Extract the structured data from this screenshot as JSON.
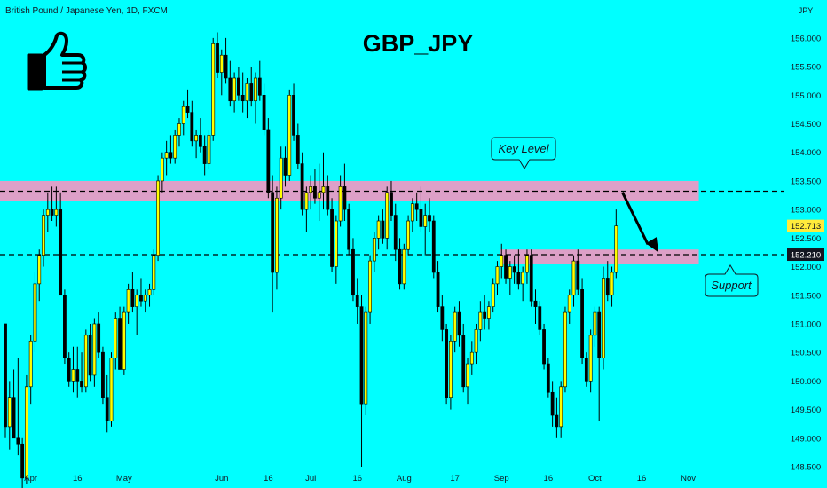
{
  "header": {
    "symbol_label": "British Pound / Japanese Yen, 1D, FXCM",
    "title": "GBP_JPY",
    "currency": "JPY"
  },
  "colors": {
    "background": "#00ffff",
    "bull": "#ffff00",
    "bear": "#000000",
    "zone": "#dda0c8",
    "price_badge": "#ffeb3b",
    "dark_badge": "#131722"
  },
  "icons": {
    "thumbs": "thumbs-up-icon"
  },
  "annotations": {
    "key_level": "Key Level",
    "support": "Support"
  },
  "price_tags": {
    "current": "152.713",
    "support": "152.210"
  },
  "chart_data": {
    "type": "candlestick",
    "ylim": [
      148.5,
      156.2
    ],
    "y_ticks": [
      "156.000",
      "155.500",
      "155.000",
      "154.500",
      "154.000",
      "153.500",
      "153.000",
      "152.500",
      "152.000",
      "151.500",
      "151.000",
      "150.500",
      "150.000",
      "149.500",
      "149.000",
      "148.500"
    ],
    "x_ticks": [
      {
        "label": "Apr",
        "i": 6
      },
      {
        "label": "16",
        "i": 17
      },
      {
        "label": "May",
        "i": 28
      },
      {
        "label": "Jun",
        "i": 51
      },
      {
        "label": "16",
        "i": 62
      },
      {
        "label": "Jul",
        "i": 72
      },
      {
        "label": "16",
        "i": 83
      },
      {
        "label": "Aug",
        "i": 94
      },
      {
        "label": "17",
        "i": 106
      },
      {
        "label": "Sep",
        "i": 117
      },
      {
        "label": "16",
        "i": 128
      },
      {
        "label": "Oct",
        "i": 139
      },
      {
        "label": "16",
        "i": 150
      },
      {
        "label": "Nov",
        "i": 161
      }
    ],
    "zones": [
      {
        "name": "key-level",
        "from": 153.15,
        "to": 153.5,
        "x_from": 0,
        "x_to": 163.5
      },
      {
        "name": "support",
        "from": 152.05,
        "to": 152.3,
        "x_from": 118,
        "x_to": 163.5
      }
    ],
    "dashed_levels": [
      153.32,
      152.21
    ],
    "arrow": {
      "from": {
        "i": 145.5,
        "y": 153.3
      },
      "to": {
        "i": 154,
        "y": 152.25
      }
    },
    "ohlc": [
      [
        151.0,
        151.0,
        149.0,
        149.2
      ],
      [
        149.2,
        150.0,
        148.8,
        149.7
      ],
      [
        149.7,
        150.2,
        149.0,
        149.0
      ],
      [
        149.0,
        150.4,
        148.7,
        148.9
      ],
      [
        148.9,
        149.0,
        148.0,
        148.3
      ],
      [
        148.3,
        150.1,
        148.2,
        149.9
      ],
      [
        149.9,
        150.8,
        149.6,
        150.7
      ],
      [
        150.7,
        151.9,
        150.5,
        151.7
      ],
      [
        151.7,
        152.3,
        151.4,
        152.2
      ],
      [
        152.2,
        153.0,
        152.0,
        152.9
      ],
      [
        152.9,
        153.3,
        152.6,
        153.0
      ],
      [
        153.0,
        153.4,
        152.8,
        152.9
      ],
      [
        152.9,
        153.4,
        152.7,
        153.0
      ],
      [
        153.0,
        153.3,
        151.5,
        151.5
      ],
      [
        151.5,
        151.6,
        150.3,
        150.4
      ],
      [
        150.4,
        150.5,
        149.9,
        150.0
      ],
      [
        150.0,
        150.6,
        149.8,
        150.2
      ],
      [
        150.2,
        150.6,
        149.7,
        150.0
      ],
      [
        150.0,
        150.5,
        149.8,
        149.9
      ],
      [
        149.9,
        150.9,
        149.8,
        150.8
      ],
      [
        150.8,
        151.0,
        150.0,
        150.1
      ],
      [
        150.1,
        151.1,
        149.9,
        151.0
      ],
      [
        151.0,
        151.2,
        150.4,
        150.5
      ],
      [
        150.5,
        150.6,
        149.6,
        149.7
      ],
      [
        149.7,
        150.1,
        149.1,
        149.3
      ],
      [
        149.3,
        150.5,
        149.2,
        150.4
      ],
      [
        150.4,
        151.2,
        150.2,
        151.1
      ],
      [
        151.1,
        151.3,
        150.2,
        150.2
      ],
      [
        150.2,
        151.3,
        150.1,
        151.2
      ],
      [
        151.2,
        151.7,
        151.0,
        151.6
      ],
      [
        151.6,
        151.9,
        151.2,
        151.3
      ],
      [
        151.3,
        151.6,
        150.8,
        151.5
      ],
      [
        151.5,
        151.8,
        151.3,
        151.4
      ],
      [
        151.4,
        151.6,
        151.2,
        151.5
      ],
      [
        151.5,
        151.7,
        151.3,
        151.6
      ],
      [
        151.6,
        152.3,
        151.5,
        152.2
      ],
      [
        152.2,
        153.6,
        152.1,
        153.5
      ],
      [
        153.5,
        154.0,
        153.3,
        153.9
      ],
      [
        153.9,
        154.2,
        153.6,
        154.0
      ],
      [
        154.0,
        154.3,
        153.8,
        153.9
      ],
      [
        153.9,
        154.4,
        153.8,
        154.3
      ],
      [
        154.3,
        154.6,
        154.1,
        154.5
      ],
      [
        154.5,
        154.9,
        154.3,
        154.8
      ],
      [
        154.8,
        155.1,
        154.6,
        154.7
      ],
      [
        154.7,
        154.9,
        154.1,
        154.2
      ],
      [
        154.2,
        154.4,
        153.9,
        154.3
      ],
      [
        154.3,
        154.6,
        154.0,
        154.1
      ],
      [
        154.1,
        154.3,
        153.6,
        153.8
      ],
      [
        153.8,
        154.4,
        153.7,
        154.3
      ],
      [
        154.3,
        156.0,
        154.2,
        155.9
      ],
      [
        155.9,
        156.1,
        155.3,
        155.4
      ],
      [
        155.4,
        155.8,
        155.0,
        155.7
      ],
      [
        155.7,
        156.0,
        155.2,
        155.3
      ],
      [
        155.3,
        155.6,
        154.8,
        154.9
      ],
      [
        154.9,
        155.4,
        154.7,
        155.3
      ],
      [
        155.3,
        155.5,
        154.9,
        155.0
      ],
      [
        155.0,
        155.4,
        154.7,
        154.9
      ],
      [
        154.9,
        155.3,
        154.6,
        155.2
      ],
      [
        155.2,
        155.5,
        154.8,
        154.9
      ],
      [
        154.9,
        155.4,
        154.5,
        155.3
      ],
      [
        155.3,
        155.6,
        154.9,
        155.0
      ],
      [
        155.0,
        155.2,
        154.3,
        154.4
      ],
      [
        154.4,
        154.6,
        153.2,
        153.3
      ],
      [
        153.3,
        153.6,
        151.2,
        151.9
      ],
      [
        151.9,
        153.4,
        151.6,
        153.2
      ],
      [
        153.2,
        154.1,
        153.0,
        153.9
      ],
      [
        153.9,
        154.1,
        153.4,
        153.6
      ],
      [
        153.6,
        155.1,
        153.5,
        155.0
      ],
      [
        155.0,
        155.2,
        154.2,
        154.3
      ],
      [
        154.3,
        154.5,
        153.7,
        153.8
      ],
      [
        153.8,
        154.0,
        152.9,
        153.0
      ],
      [
        153.0,
        153.4,
        152.6,
        153.3
      ],
      [
        153.3,
        153.6,
        153.0,
        153.4
      ],
      [
        153.4,
        153.7,
        153.1,
        153.2
      ],
      [
        153.2,
        153.8,
        152.8,
        153.3
      ],
      [
        153.3,
        154.0,
        153.0,
        153.4
      ],
      [
        153.4,
        153.6,
        152.9,
        153.0
      ],
      [
        153.0,
        153.2,
        151.9,
        152.0
      ],
      [
        152.0,
        152.9,
        151.7,
        152.8
      ],
      [
        152.8,
        153.6,
        152.7,
        153.4
      ],
      [
        153.4,
        153.8,
        152.8,
        153.0
      ],
      [
        153.0,
        153.1,
        152.2,
        152.3
      ],
      [
        152.3,
        152.5,
        151.4,
        151.5
      ],
      [
        151.5,
        151.8,
        151.0,
        151.3
      ],
      [
        151.3,
        151.5,
        148.5,
        149.6
      ],
      [
        149.6,
        151.3,
        149.4,
        151.2
      ],
      [
        151.2,
        152.2,
        151.0,
        152.1
      ],
      [
        152.1,
        152.6,
        151.9,
        152.5
      ],
      [
        152.5,
        152.9,
        152.3,
        152.8
      ],
      [
        152.8,
        153.0,
        152.4,
        152.5
      ],
      [
        152.5,
        153.4,
        152.3,
        153.3
      ],
      [
        153.3,
        153.5,
        152.8,
        152.9
      ],
      [
        152.9,
        153.1,
        152.1,
        152.3
      ],
      [
        152.3,
        152.5,
        151.6,
        151.7
      ],
      [
        151.7,
        152.4,
        151.6,
        152.3
      ],
      [
        152.3,
        152.9,
        152.2,
        152.8
      ],
      [
        152.8,
        153.2,
        152.6,
        153.1
      ],
      [
        153.1,
        153.3,
        152.8,
        153.0
      ],
      [
        153.0,
        153.4,
        152.6,
        152.7
      ],
      [
        152.7,
        153.1,
        152.2,
        152.9
      ],
      [
        152.9,
        153.2,
        152.6,
        152.8
      ],
      [
        152.8,
        152.9,
        151.8,
        151.9
      ],
      [
        151.9,
        152.1,
        151.2,
        151.3
      ],
      [
        151.3,
        151.5,
        150.7,
        150.9
      ],
      [
        150.9,
        151.0,
        149.6,
        149.7
      ],
      [
        149.7,
        150.8,
        149.5,
        150.7
      ],
      [
        150.7,
        151.3,
        150.5,
        151.2
      ],
      [
        151.2,
        151.4,
        150.6,
        150.8
      ],
      [
        150.8,
        151.0,
        149.8,
        149.9
      ],
      [
        149.9,
        150.4,
        149.6,
        150.3
      ],
      [
        150.3,
        150.7,
        150.1,
        150.5
      ],
      [
        150.5,
        151.0,
        150.3,
        150.9
      ],
      [
        150.9,
        151.4,
        150.7,
        151.2
      ],
      [
        151.2,
        151.5,
        150.9,
        151.1
      ],
      [
        151.1,
        151.4,
        150.9,
        151.3
      ],
      [
        151.3,
        151.8,
        151.2,
        151.7
      ],
      [
        151.7,
        152.1,
        151.5,
        152.0
      ],
      [
        152.0,
        152.4,
        151.8,
        152.2
      ],
      [
        152.2,
        152.3,
        151.7,
        151.8
      ],
      [
        151.8,
        152.1,
        151.5,
        152.0
      ],
      [
        152.0,
        152.2,
        151.7,
        151.9
      ],
      [
        151.9,
        152.3,
        151.6,
        151.7
      ],
      [
        151.7,
        152.0,
        151.4,
        151.9
      ],
      [
        151.9,
        152.3,
        151.7,
        152.2
      ],
      [
        152.2,
        152.3,
        151.3,
        151.4
      ],
      [
        151.4,
        151.6,
        151.0,
        151.3
      ],
      [
        151.3,
        151.4,
        150.8,
        150.9
      ],
      [
        150.9,
        151.0,
        150.2,
        150.3
      ],
      [
        150.3,
        150.4,
        149.7,
        149.8
      ],
      [
        149.8,
        150.0,
        149.2,
        149.4
      ],
      [
        149.4,
        149.7,
        149.0,
        149.2
      ],
      [
        149.2,
        150.0,
        149.0,
        149.9
      ],
      [
        149.9,
        151.3,
        149.8,
        151.2
      ],
      [
        151.2,
        151.6,
        151.0,
        151.5
      ],
      [
        151.5,
        152.2,
        151.3,
        152.1
      ],
      [
        152.1,
        152.3,
        151.5,
        151.6
      ],
      [
        151.6,
        151.8,
        150.3,
        150.4
      ],
      [
        150.4,
        150.5,
        149.9,
        150.0
      ],
      [
        150.0,
        150.9,
        149.8,
        150.8
      ],
      [
        150.8,
        151.3,
        150.6,
        151.2
      ],
      [
        151.2,
        151.3,
        149.3,
        150.4
      ],
      [
        150.4,
        152.0,
        150.2,
        151.8
      ],
      [
        151.8,
        152.1,
        151.4,
        151.5
      ],
      [
        151.5,
        152.0,
        151.3,
        151.9
      ],
      [
        151.9,
        153.0,
        151.8,
        152.713
      ]
    ]
  }
}
